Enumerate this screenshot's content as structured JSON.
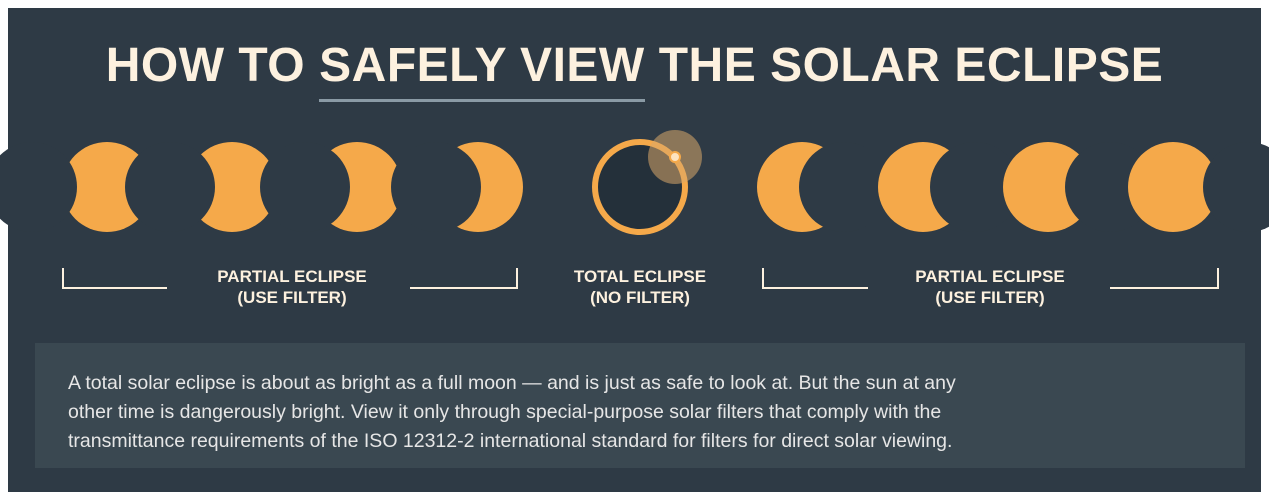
{
  "title": {
    "before": "HOW TO",
    "underlined": "SAFELY VIEW",
    "after": "THE SOLAR ECLIPSE"
  },
  "labels": [
    {
      "line1": "PARTIAL ECLIPSE",
      "line2": "(USE FILTER)"
    },
    {
      "line1": "TOTAL ECLIPSE",
      "line2": "(NO FILTER)"
    },
    {
      "line1": "PARTIAL ECLIPSE",
      "line2": "(USE FILTER)"
    }
  ],
  "paragraph": {
    "lines": [
      "A total solar eclipse is about as bright as a full moon — and is just as safe to look at. But the sun at any",
      "other time is dangerously bright. View it only through special-purpose solar filters that comply with the",
      "transmittance requirements of the ISO 12312-2 international standard for filters for direct solar viewing."
    ]
  }
}
